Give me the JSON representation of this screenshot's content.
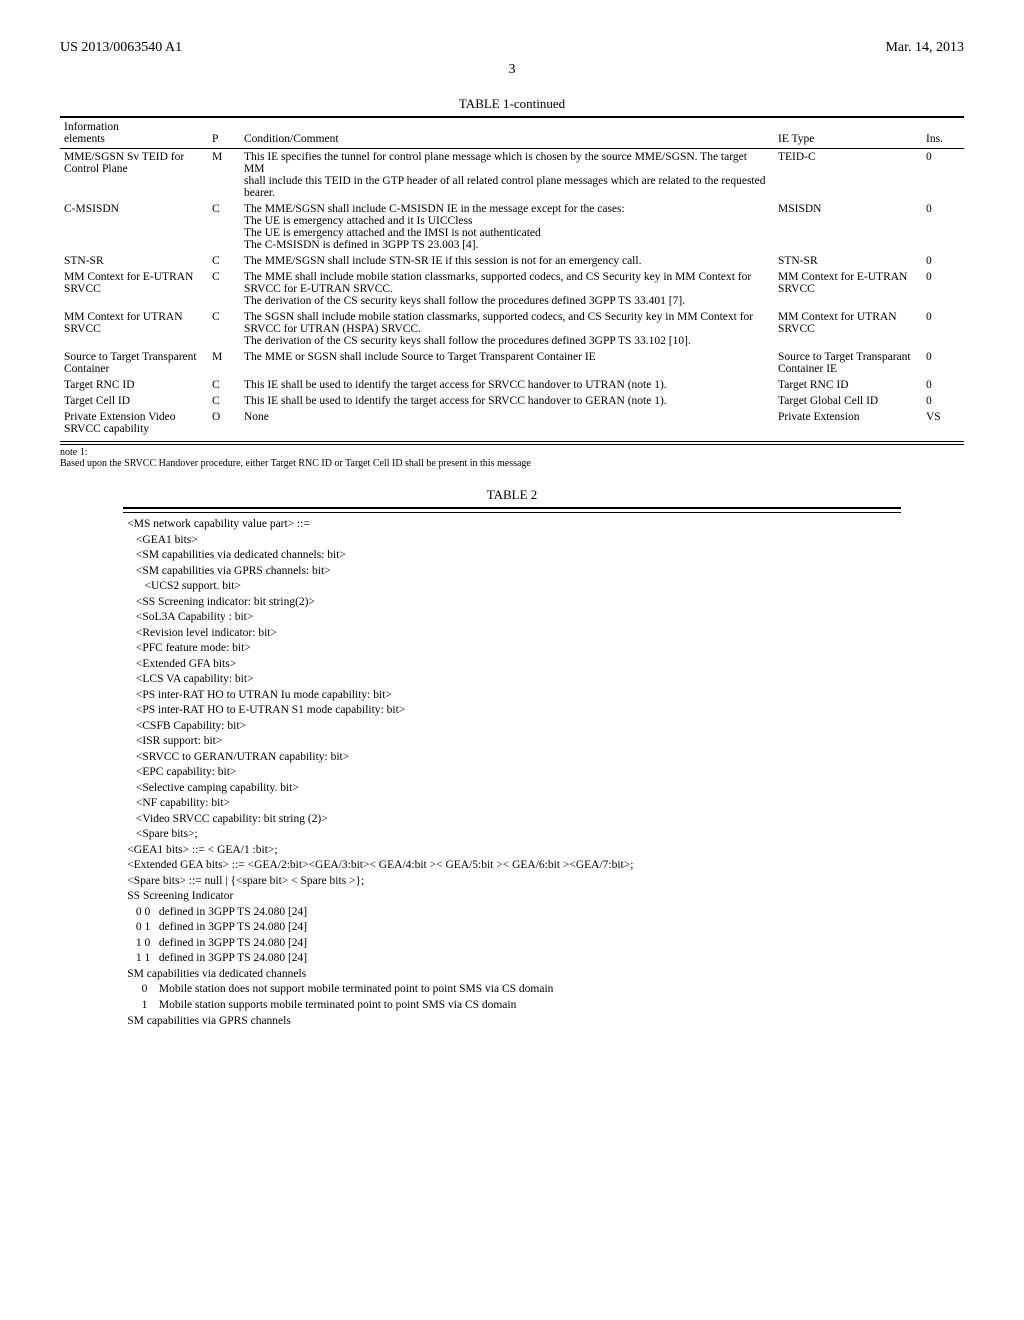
{
  "header": {
    "left": "US 2013/0063540 A1",
    "right": "Mar. 14, 2013"
  },
  "page_number": "3",
  "table1": {
    "title": "TABLE 1-continued",
    "columns": [
      "Information\nelements",
      "P",
      "Condition/Comment",
      "IE Type",
      "Ins."
    ],
    "rows": [
      {
        "ie": "MME/SGSN Sv TEID for Control Plane",
        "p": "M",
        "cc": "This IE specifies the tunnel for control plane message which is chosen by the source MME/SGSN. The target MM\nshall include this TEID in the GTP header of all related control plane messages which are related to the requested bearer.",
        "type": "TEID-C",
        "ins": "0"
      },
      {
        "ie": "C-MSISDN",
        "p": "C",
        "cc": "The MME/SGSN shall include C-MSISDN IE in the message except for the cases:\nThe UE is emergency attached and it Is UICCless\nThe UE is emergency attached and the IMSI is not authenticated\nThe C-MSISDN is defined in 3GPP TS 23.003 [4].",
        "type": "MSISDN",
        "ins": "0"
      },
      {
        "ie": "STN-SR",
        "p": "C",
        "cc": "The MME/SGSN shall include STN-SR IE if this session is not for an emergency call.",
        "type": "STN-SR",
        "ins": "0"
      },
      {
        "ie": "MM Context for E-UTRAN SRVCC",
        "p": "C",
        "cc": "The MME shall include mobile station classmarks, supported codecs, and CS Security key in MM Context for SRVCC for E-UTRAN SRVCC.\nThe derivation of the CS security keys shall follow the procedures defined 3GPP TS 33.401 [7].",
        "type": "MM Context for E-UTRAN SRVCC",
        "ins": "0"
      },
      {
        "ie": "MM Context for UTRAN SRVCC",
        "p": "C",
        "cc": "The SGSN shall include mobile station classmarks, supported codecs, and CS Security key in MM Context for SRVCC for UTRAN (HSPA) SRVCC.\nThe derivation of the CS security keys shall follow the procedures defined 3GPP TS 33.102 [10].",
        "type": "MM Context for UTRAN SRVCC",
        "ins": "0"
      },
      {
        "ie": "Source to Target Transparent Container",
        "p": "M",
        "cc": "The MME or SGSN shall include Source to Target Transparent Container IE",
        "type": "Source to Target Transparant Container IE",
        "ins": "0"
      },
      {
        "ie": "Target RNC ID",
        "p": "C",
        "cc": "This IE shall be used to identify the target access for SRVCC handover to UTRAN (note 1).",
        "type": "Target RNC ID",
        "ins": "0"
      },
      {
        "ie": "Target Cell ID",
        "p": "C",
        "cc": "This IE shall be used to identify the target access for SRVCC handover to GERAN (note 1).",
        "type": "Target Global Cell ID",
        "ins": "0"
      },
      {
        "ie": "Private Extension Video SRVCC capability",
        "p": "O",
        "cc": "None",
        "type": "Private Extension",
        "ins": "VS"
      }
    ],
    "note_label": "note 1:",
    "note_text": "Based upon the SRVCC Handover procedure, either Target RNC ID or Target Cell ID shall be present in this message"
  },
  "table2": {
    "title": "TABLE 2",
    "body": "<MS network capability value part> ::=\n   <GEA1 bits>\n   <SM capabilities via dedicated channels: bit>\n   <SM capabilities via GPRS channels: bit>\n      <UCS2 support. bit>\n   <SS Screening indicator: bit string(2)>\n   <SoL3A Capability : bit>\n   <Revision level indicator: bit>\n   <PFC feature mode: bit>\n   <Extended GFA bits>\n   <LCS VA capability: bit>\n   <PS inter-RAT HO to UTRAN Iu mode capability: bit>\n   <PS inter-RAT HO to E-UTRAN S1 mode capability: bit>\n   <CSFB Capability: bit>\n   <ISR support: bit>\n   <SRVCC to GERAN/UTRAN capability: bit>\n   <EPC capability: bit>\n   <Selective camping capability. bit>\n   <NF capability: bit>\n   <Video SRVCC capability: bit string (2)>\n   <Spare bits>;\n<GEA1 bits> ::= < GEA/1 :bit>;\n<Extended GEA bits> ::= <GEA/2:bit><GEA/3:bit>< GEA/4:bit >< GEA/5:bit >< GEA/6:bit ><GEA/7:bit>;\n<Spare bits> ::= null | {<spare bit> < Spare bits >};\nSS Screening Indicator\n   0 0   defined in 3GPP TS 24.080 [24]\n   0 1   defined in 3GPP TS 24.080 [24]\n   1 0   defined in 3GPP TS 24.080 [24]\n   1 1   defined in 3GPP TS 24.080 [24]\nSM capabilities via dedicated channels\n     0    Mobile station does not support mobile terminated point to point SMS via CS domain\n     1    Mobile station supports mobile terminated point to point SMS via CS domain\nSM capabilities via GPRS channels"
  }
}
